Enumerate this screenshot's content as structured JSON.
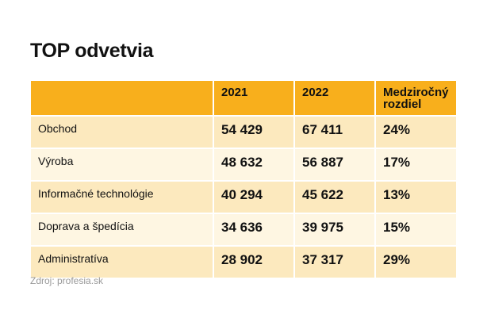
{
  "title": "TOP odvetvia",
  "table": {
    "headers": [
      "",
      "2021",
      "2022",
      "Medziročný rozdiel"
    ],
    "rows": [
      {
        "sector": "Obchod",
        "y2021": "54 429",
        "y2022": "67 411",
        "diff": "24%"
      },
      {
        "sector": "Výroba",
        "y2021": "48 632",
        "y2022": "56 887",
        "diff": "17%"
      },
      {
        "sector": "Informačné technológie",
        "y2021": "40 294",
        "y2022": "45 622",
        "diff": "13%"
      },
      {
        "sector": "Doprava a špedícia",
        "y2021": "34 636",
        "y2022": "39 975",
        "diff": "15%"
      },
      {
        "sector": "Administratíva",
        "y2021": "28 902",
        "y2022": "37 317",
        "diff": "29%"
      }
    ]
  },
  "source": "Zdroj: profesia.sk",
  "colors": {
    "header": "#F8AF1C",
    "row_odd": "#FCE9BE",
    "row_even": "#FEF6E2"
  }
}
